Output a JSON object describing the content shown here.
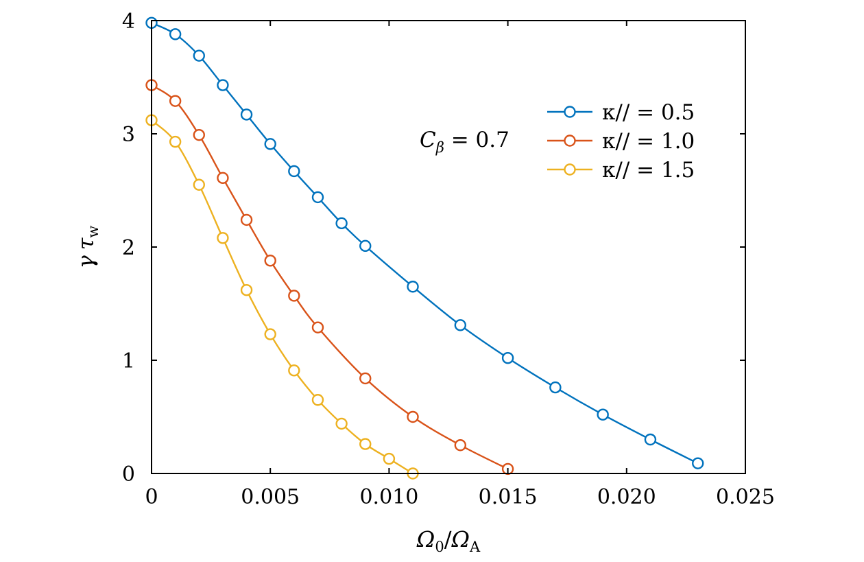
{
  "chart_data": {
    "type": "line",
    "title": "",
    "xlabel": "Ω₀/Ω_A",
    "ylabel": "γ τ_w",
    "xlim": [
      0,
      0.025
    ],
    "ylim": [
      0,
      4
    ],
    "xticks": [
      0,
      0.005,
      0.01,
      0.015,
      0.02,
      0.025
    ],
    "xtick_labels": [
      "0",
      "0.005",
      "0.010",
      "0.015",
      "0.020",
      "0.025"
    ],
    "yticks": [
      0,
      1,
      2,
      3,
      4
    ],
    "ytick_labels": [
      "0",
      "1",
      "2",
      "3",
      "4"
    ],
    "grid": false,
    "legend_position": "upper-right",
    "annotation": "C_β = 0.7",
    "series": [
      {
        "name": "κ// = 0.5",
        "color": "#0072BD",
        "x": [
          0,
          0.001,
          0.002,
          0.003,
          0.004,
          0.005,
          0.006,
          0.007,
          0.008,
          0.009,
          0.011,
          0.013,
          0.015,
          0.017,
          0.019,
          0.021,
          0.023
        ],
        "y": [
          3.98,
          3.88,
          3.69,
          3.43,
          3.17,
          2.91,
          2.67,
          2.44,
          2.21,
          2.01,
          1.65,
          1.31,
          1.02,
          0.76,
          0.52,
          0.3,
          0.09
        ]
      },
      {
        "name": "κ// = 1.0",
        "color": "#D95319",
        "x": [
          0,
          0.001,
          0.002,
          0.003,
          0.004,
          0.005,
          0.006,
          0.007,
          0.009,
          0.011,
          0.013,
          0.015
        ],
        "y": [
          3.43,
          3.29,
          2.99,
          2.61,
          2.24,
          1.88,
          1.57,
          1.29,
          0.84,
          0.5,
          0.25,
          0.04
        ]
      },
      {
        "name": "κ// = 1.5",
        "color": "#EDB120",
        "x": [
          0,
          0.001,
          0.002,
          0.003,
          0.004,
          0.005,
          0.006,
          0.007,
          0.008,
          0.009,
          0.01,
          0.011
        ],
        "y": [
          3.12,
          2.93,
          2.55,
          2.08,
          1.62,
          1.23,
          0.91,
          0.65,
          0.44,
          0.26,
          0.13,
          0.0
        ]
      }
    ]
  }
}
